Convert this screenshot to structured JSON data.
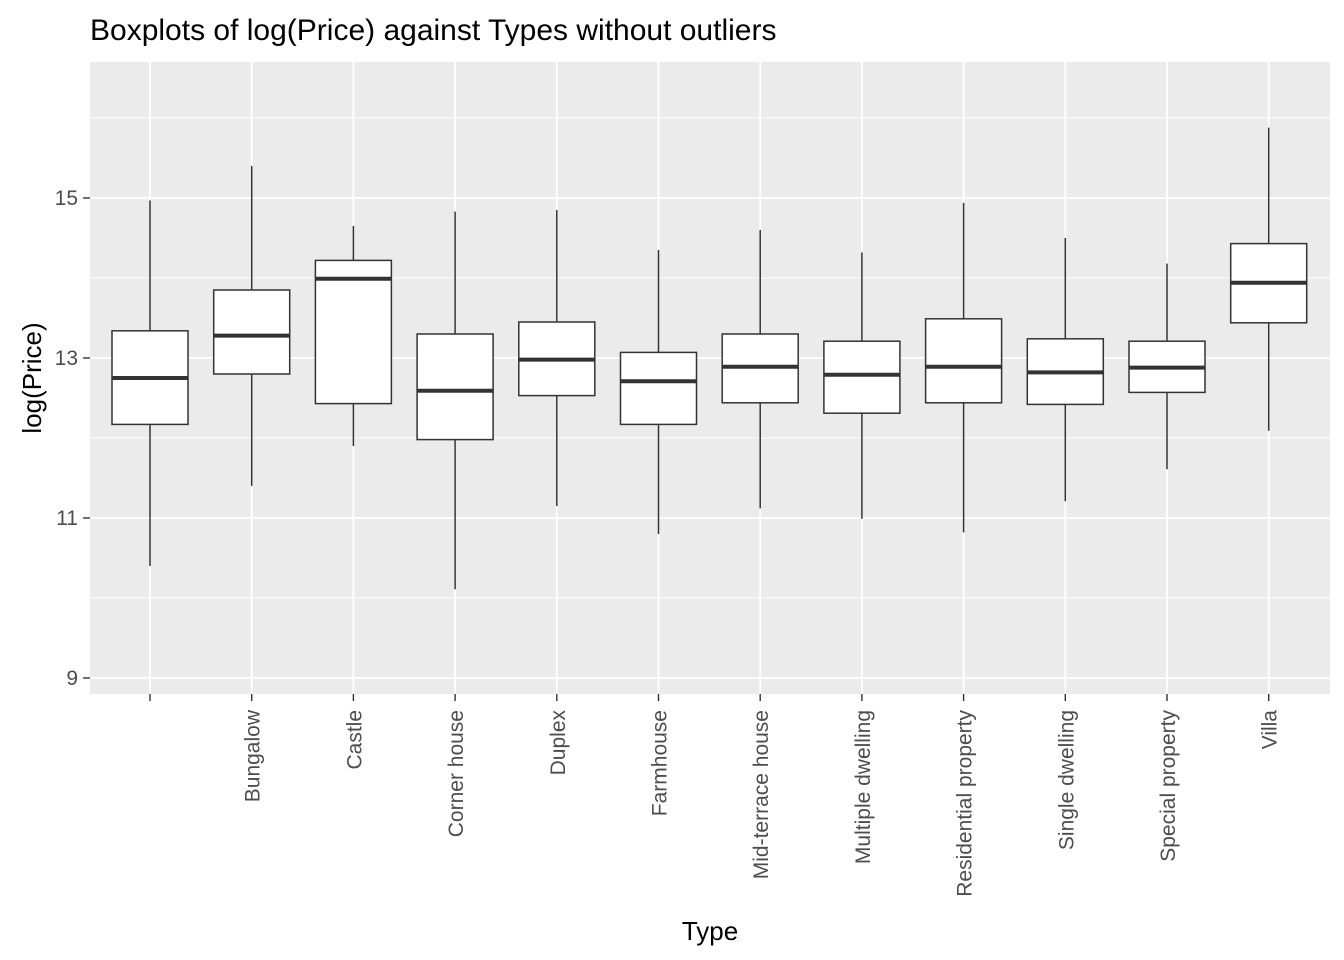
{
  "chart_data": {
    "type": "boxplot",
    "title": "Boxplots of log(Price) against Types without outliers",
    "xlabel": "Type",
    "ylabel": "log(Price)",
    "ylim": [
      8.8,
      16.7
    ],
    "yticks": [
      9,
      11,
      13,
      15
    ],
    "grid": true,
    "legend": "none",
    "categories": [
      "",
      "Bungalow",
      "Castle",
      "Corner house",
      "Duplex",
      "Farmhouse",
      "Mid-terrace house",
      "Multiple dwelling",
      "Residential property",
      "Single dwelling",
      "Special property",
      "Villa"
    ],
    "boxes": [
      {
        "category": "",
        "whisker_low": 10.4,
        "q1": 12.17,
        "median": 12.75,
        "q3": 13.34,
        "whisker_high": 14.97
      },
      {
        "category": "Bungalow",
        "whisker_low": 11.4,
        "q1": 12.8,
        "median": 13.28,
        "q3": 13.85,
        "whisker_high": 15.4
      },
      {
        "category": "Castle",
        "whisker_low": 11.9,
        "q1": 12.43,
        "median": 13.99,
        "q3": 14.22,
        "whisker_high": 14.65
      },
      {
        "category": "Corner house",
        "whisker_low": 10.11,
        "q1": 11.98,
        "median": 12.59,
        "q3": 13.3,
        "whisker_high": 14.83
      },
      {
        "category": "Duplex",
        "whisker_low": 11.15,
        "q1": 12.53,
        "median": 12.98,
        "q3": 13.45,
        "whisker_high": 14.85
      },
      {
        "category": "Farmhouse",
        "whisker_low": 10.8,
        "q1": 12.17,
        "median": 12.71,
        "q3": 13.07,
        "whisker_high": 14.35
      },
      {
        "category": "Mid-terrace house",
        "whisker_low": 11.12,
        "q1": 12.44,
        "median": 12.89,
        "q3": 13.3,
        "whisker_high": 14.6
      },
      {
        "category": "Multiple dwelling",
        "whisker_low": 10.99,
        "q1": 12.31,
        "median": 12.79,
        "q3": 13.21,
        "whisker_high": 14.32
      },
      {
        "category": "Residential property",
        "whisker_low": 10.82,
        "q1": 12.44,
        "median": 12.89,
        "q3": 13.49,
        "whisker_high": 14.94
      },
      {
        "category": "Single dwelling",
        "whisker_low": 11.21,
        "q1": 12.42,
        "median": 12.82,
        "q3": 13.24,
        "whisker_high": 14.5
      },
      {
        "category": "Special property",
        "whisker_low": 11.61,
        "q1": 12.57,
        "median": 12.88,
        "q3": 13.21,
        "whisker_high": 14.18
      },
      {
        "category": "Villa",
        "whisker_low": 12.09,
        "q1": 13.44,
        "median": 13.94,
        "q3": 14.43,
        "whisker_high": 15.88
      }
    ]
  }
}
